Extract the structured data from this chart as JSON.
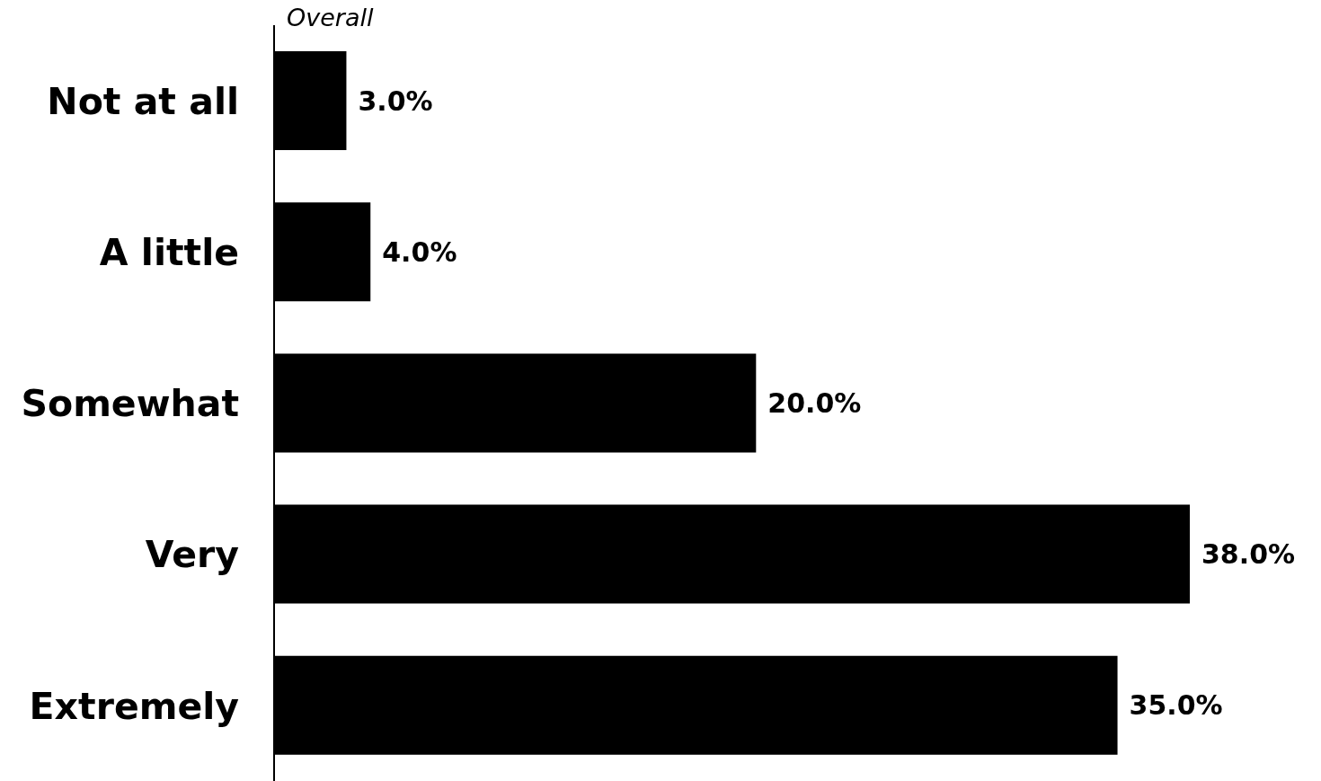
{
  "chart_data": {
    "type": "bar",
    "orientation": "horizontal",
    "title": "Overall",
    "categories": [
      "Not at all",
      "A little",
      "Somewhat",
      "Very",
      "Extremely"
    ],
    "values": [
      3.0,
      4.0,
      20.0,
      38.0,
      35.0
    ],
    "value_labels": [
      "3.0%",
      "4.0%",
      "20.0%",
      "38.0%",
      "35.0%"
    ],
    "color": "#000000",
    "tick_labels": "y"
  }
}
